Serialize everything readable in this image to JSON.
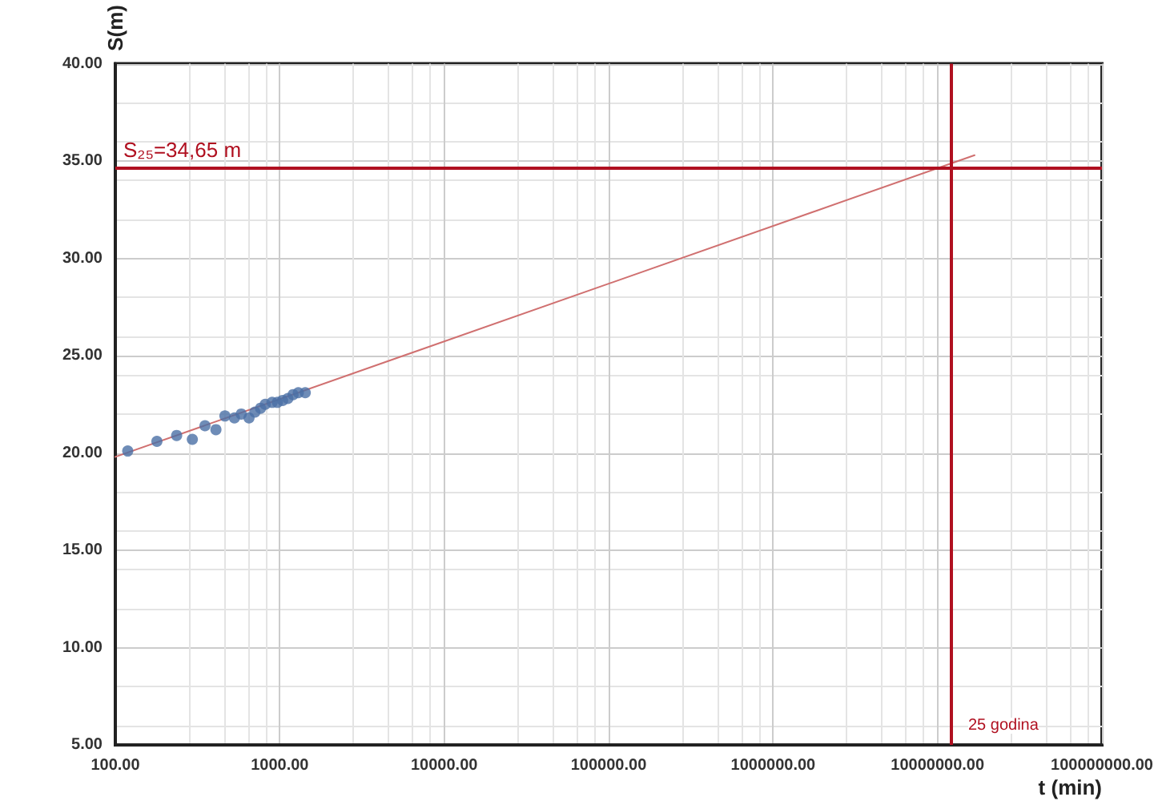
{
  "chart_data": {
    "type": "scatter",
    "xlabel": "t (min)",
    "ylabel": "S(m)",
    "log": "x",
    "xlim": [
      100,
      100000000
    ],
    "ylim": [
      5,
      40
    ],
    "xticks": [
      {
        "value": 100,
        "label": "100.00"
      },
      {
        "value": 1000,
        "label": "1000.00"
      },
      {
        "value": 10000,
        "label": "10000.00"
      },
      {
        "value": 100000,
        "label": "100000.00"
      },
      {
        "value": 1000000,
        "label": "1000000.00"
      },
      {
        "value": 10000000,
        "label": "10000000.00"
      },
      {
        "value": 100000000,
        "label": "100000000.00"
      }
    ],
    "yticks": [
      {
        "value": 5,
        "label": "5.00"
      },
      {
        "value": 10,
        "label": "10.00"
      },
      {
        "value": 15,
        "label": "15.00"
      },
      {
        "value": 20,
        "label": "20.00"
      },
      {
        "value": 25,
        "label": "25.00"
      },
      {
        "value": 30,
        "label": "30.00"
      },
      {
        "value": 35,
        "label": "35.00"
      },
      {
        "value": 40,
        "label": "40.00"
      }
    ],
    "grid": true,
    "marker": "circle",
    "series": [
      {
        "color": "#4a6fa5",
        "x": [
          119,
          179,
          236,
          294,
          351,
          409,
          464,
          530,
          583,
          650,
          706,
          764,
          816,
          899,
          968,
          1041,
          1120,
          1205,
          1297,
          1429
        ],
        "values": [
          20.1,
          20.6,
          20.9,
          20.7,
          21.4,
          21.2,
          21.9,
          21.8,
          22.0,
          21.8,
          22.1,
          22.3,
          22.5,
          22.6,
          22.6,
          22.7,
          22.8,
          23.0,
          23.1,
          23.1
        ]
      },
      {
        "type": "line",
        "color": "#d07070",
        "line_style": "solid",
        "marker": "none",
        "x": [
          100,
          16800000
        ],
        "values": [
          19.8,
          35.3
        ]
      }
    ],
    "ref_lines": [
      {
        "axis": "y",
        "value": 34.65,
        "label": "S₂₅=34,65 m",
        "color": "#b01020",
        "line_style": "solid"
      },
      {
        "axis": "x",
        "value": 12000000,
        "label": "25 godina",
        "color": "#b01020",
        "line_style": "solid"
      }
    ]
  }
}
